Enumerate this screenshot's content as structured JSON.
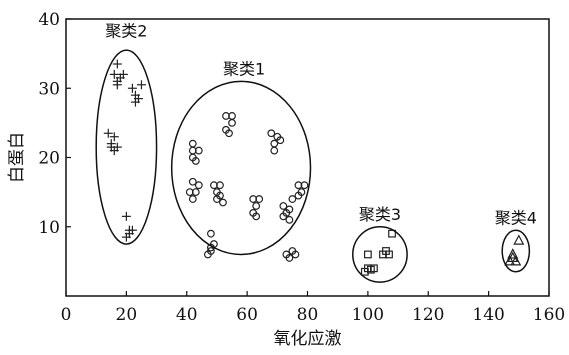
{
  "chart_data": {
    "type": "scatter",
    "title": "",
    "xlabel": "氧化应激",
    "ylabel": "白蛋白",
    "xlim": [
      0,
      160
    ],
    "ylim": [
      0,
      40
    ],
    "xticks": [
      "0",
      "20",
      "40",
      "60",
      "80",
      "100",
      "120",
      "140",
      "160"
    ],
    "yticks": [
      "10",
      "20",
      "30",
      "40"
    ],
    "grid": false,
    "clusters": [
      {
        "name": "聚类2",
        "marker": "plus",
        "center": [
          20,
          21.5
        ],
        "radius": [
          10,
          14
        ],
        "label_at": [
          20,
          37.5
        ],
        "points": [
          [
            15,
            22
          ],
          [
            16,
            23
          ],
          [
            14,
            23.5
          ],
          [
            15,
            21.5
          ],
          [
            16,
            21
          ],
          [
            17,
            21.5
          ],
          [
            17,
            33.5
          ],
          [
            16,
            32
          ],
          [
            17,
            31
          ],
          [
            18,
            31.5
          ],
          [
            19,
            32
          ],
          [
            17,
            30.5
          ],
          [
            22,
            30
          ],
          [
            23,
            29
          ],
          [
            24,
            28.5
          ],
          [
            25,
            30.5
          ],
          [
            23,
            28
          ],
          [
            20,
            11.5
          ],
          [
            21,
            9.5
          ],
          [
            20,
            8.5
          ],
          [
            22,
            9.5
          ],
          [
            21,
            9
          ]
        ]
      },
      {
        "name": "聚类1",
        "marker": "circle",
        "center": [
          58,
          18.5
        ],
        "radius": [
          23,
          12.5
        ],
        "label_at": [
          59,
          32
        ],
        "points": [
          [
            42,
            22
          ],
          [
            42,
            20
          ],
          [
            43,
            19.5
          ],
          [
            42,
            21
          ],
          [
            44,
            21
          ],
          [
            42,
            16.5
          ],
          [
            41,
            15
          ],
          [
            42,
            14
          ],
          [
            44,
            16
          ],
          [
            43,
            15
          ],
          [
            48,
            9
          ],
          [
            48,
            7
          ],
          [
            48,
            6.5
          ],
          [
            49,
            7.5
          ],
          [
            47,
            6
          ],
          [
            49,
            16
          ],
          [
            51,
            16
          ],
          [
            50,
            15
          ],
          [
            51,
            14.5
          ],
          [
            52,
            13.5
          ],
          [
            50,
            14
          ],
          [
            53,
            26
          ],
          [
            55,
            26
          ],
          [
            53,
            24
          ],
          [
            54,
            23.5
          ],
          [
            55,
            25
          ],
          [
            62,
            14
          ],
          [
            63,
            13
          ],
          [
            64,
            14
          ],
          [
            62,
            12
          ],
          [
            63,
            11.5
          ],
          [
            68,
            23.5
          ],
          [
            69,
            22
          ],
          [
            70,
            23
          ],
          [
            69,
            21
          ],
          [
            71,
            22.5
          ],
          [
            72,
            13
          ],
          [
            73,
            12
          ],
          [
            74,
            11
          ],
          [
            72,
            11.5
          ],
          [
            74,
            12.5
          ],
          [
            75,
            14
          ],
          [
            77,
            14.5
          ],
          [
            78,
            15
          ],
          [
            77,
            16
          ],
          [
            79,
            16
          ],
          [
            73,
            6
          ],
          [
            74,
            5.5
          ],
          [
            75,
            6.5
          ],
          [
            76,
            6
          ]
        ]
      },
      {
        "name": "聚类3",
        "marker": "square",
        "center": [
          104,
          6
        ],
        "radius": [
          9,
          4
        ],
        "label_at": [
          104,
          11
        ],
        "points": [
          [
            100,
            6
          ],
          [
            106,
            6.5
          ],
          [
            107,
            6
          ],
          [
            108,
            9
          ],
          [
            105,
            6
          ],
          [
            100,
            4
          ],
          [
            101,
            3.8
          ],
          [
            99,
            3.5
          ],
          [
            102,
            4
          ]
        ]
      },
      {
        "name": "聚类4",
        "marker": "triangle",
        "center": [
          149,
          6.5
        ],
        "radius": [
          4.5,
          3
        ],
        "label_at": [
          149,
          10.5
        ],
        "points": [
          [
            150,
            8
          ],
          [
            148,
            5.5
          ],
          [
            147,
            5
          ],
          [
            149,
            5
          ],
          [
            148,
            6
          ]
        ]
      }
    ]
  }
}
